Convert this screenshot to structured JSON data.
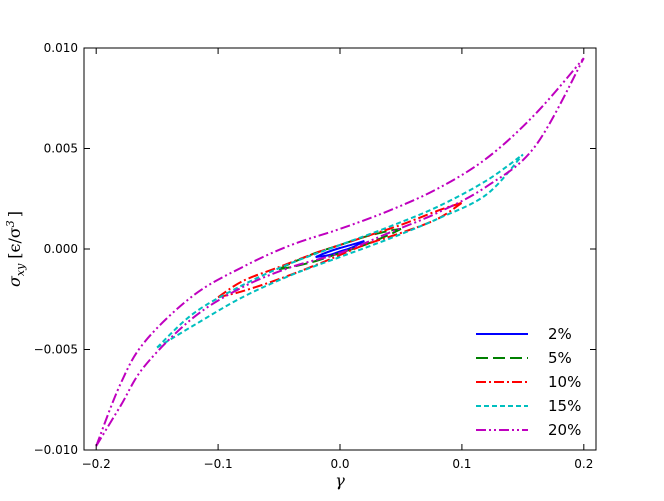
{
  "chart_data": {
    "type": "line",
    "xlabel": "γ",
    "ylabel": "σ_xy [ϵ/σ³]",
    "ylabel_parts": {
      "sym": "σ",
      "sub": "xy",
      "unit_open": "[ϵ/σ",
      "sup": "3",
      "unit_close": "]"
    },
    "xlim": [
      -0.21,
      0.21
    ],
    "ylim": [
      -0.01,
      0.01
    ],
    "xticks": [
      -0.2,
      -0.1,
      0.0,
      0.1,
      0.2
    ],
    "xtick_labels": [
      "−0.2",
      "−0.1",
      "0.0",
      "0.1",
      "0.2"
    ],
    "yticks": [
      -0.01,
      -0.005,
      0.0,
      0.005,
      0.01
    ],
    "ytick_labels": [
      "−0.010",
      "−0.005",
      "0.000",
      "0.005",
      "0.010"
    ],
    "legend_position": "lower-right",
    "grid": false,
    "series": [
      {
        "name": "2%",
        "color": "#0000ff",
        "dash": "solid",
        "amplitude": 0.02,
        "upper": [
          [
            -0.02,
            -0.0004
          ],
          [
            -0.01,
            -0.00015
          ],
          [
            0.0,
            5e-05
          ],
          [
            0.01,
            0.00022
          ],
          [
            0.02,
            0.0004
          ]
        ],
        "lower": [
          [
            -0.02,
            -0.0004
          ],
          [
            -0.01,
            -0.00032
          ],
          [
            0.0,
            -0.00012
          ],
          [
            0.01,
            8e-05
          ],
          [
            0.02,
            0.0004
          ]
        ]
      },
      {
        "name": "5%",
        "color": "#008000",
        "dash": "12,5",
        "amplitude": 0.05,
        "upper": [
          [
            -0.05,
            -0.001
          ],
          [
            -0.04,
            -0.0007
          ],
          [
            -0.02,
            -0.0002
          ],
          [
            0.0,
            0.0002
          ],
          [
            0.02,
            0.0006
          ],
          [
            0.04,
            0.0009
          ],
          [
            0.05,
            0.001
          ]
        ],
        "lower": [
          [
            -0.05,
            -0.001
          ],
          [
            -0.04,
            -0.0009
          ],
          [
            -0.02,
            -0.0006
          ],
          [
            0.0,
            -0.0002
          ],
          [
            0.02,
            0.0002
          ],
          [
            0.04,
            0.0007
          ],
          [
            0.05,
            0.001
          ]
        ]
      },
      {
        "name": "10%",
        "color": "#ff0000",
        "dash": "10,3,2,3",
        "amplitude": 0.1,
        "upper": [
          [
            -0.1,
            -0.0024
          ],
          [
            -0.08,
            -0.0016
          ],
          [
            -0.05,
            -0.0009
          ],
          [
            -0.02,
            -0.0002
          ],
          [
            0.0,
            0.0002
          ],
          [
            0.02,
            0.0006
          ],
          [
            0.05,
            0.0012
          ],
          [
            0.08,
            0.0019
          ],
          [
            0.1,
            0.0023
          ]
        ],
        "lower": [
          [
            -0.1,
            -0.0024
          ],
          [
            -0.08,
            -0.0021
          ],
          [
            -0.05,
            -0.0015
          ],
          [
            -0.02,
            -0.0008
          ],
          [
            0.0,
            -0.0003
          ],
          [
            0.02,
            0.0002
          ],
          [
            0.05,
            0.0008
          ],
          [
            0.08,
            0.0015
          ],
          [
            0.1,
            0.0023
          ]
        ]
      },
      {
        "name": "15%",
        "color": "#00bfbf",
        "dash": "5,3",
        "amplitude": 0.15,
        "upper": [
          [
            -0.15,
            -0.0049
          ],
          [
            -0.12,
            -0.0032
          ],
          [
            -0.08,
            -0.0018
          ],
          [
            -0.04,
            -0.0007
          ],
          [
            0.0,
            0.0002
          ],
          [
            0.04,
            0.0011
          ],
          [
            0.08,
            0.0021
          ],
          [
            0.12,
            0.0034
          ],
          [
            0.15,
            0.0047
          ]
        ],
        "lower": [
          [
            -0.15,
            -0.0049
          ],
          [
            -0.12,
            -0.0038
          ],
          [
            -0.08,
            -0.0024
          ],
          [
            -0.04,
            -0.0013
          ],
          [
            0.0,
            -0.0004
          ],
          [
            0.04,
            0.0005
          ],
          [
            0.08,
            0.0015
          ],
          [
            0.12,
            0.0027
          ],
          [
            0.15,
            0.0047
          ]
        ]
      },
      {
        "name": "20%",
        "color": "#bf00bf",
        "dash": "10,3,2,3,2,3",
        "amplitude": 0.2,
        "upper": [
          [
            -0.2,
            -0.0098
          ],
          [
            -0.18,
            -0.0067
          ],
          [
            -0.16,
            -0.0046
          ],
          [
            -0.12,
            -0.0023
          ],
          [
            -0.08,
            -0.0009
          ],
          [
            -0.04,
            0.0002
          ],
          [
            0.0,
            0.001
          ],
          [
            0.04,
            0.0019
          ],
          [
            0.08,
            0.003
          ],
          [
            0.12,
            0.0045
          ],
          [
            0.16,
            0.0067
          ],
          [
            0.2,
            0.0095
          ]
        ],
        "lower": [
          [
            -0.2,
            -0.0098
          ],
          [
            -0.18,
            -0.0078
          ],
          [
            -0.16,
            -0.0058
          ],
          [
            -0.12,
            -0.0034
          ],
          [
            -0.08,
            -0.0019
          ],
          [
            -0.04,
            -0.0009
          ],
          [
            0.0,
            -0.0002
          ],
          [
            0.04,
            0.0008
          ],
          [
            0.08,
            0.0018
          ],
          [
            0.12,
            0.0031
          ],
          [
            0.16,
            0.0051
          ],
          [
            0.2,
            0.0095
          ]
        ]
      }
    ]
  }
}
